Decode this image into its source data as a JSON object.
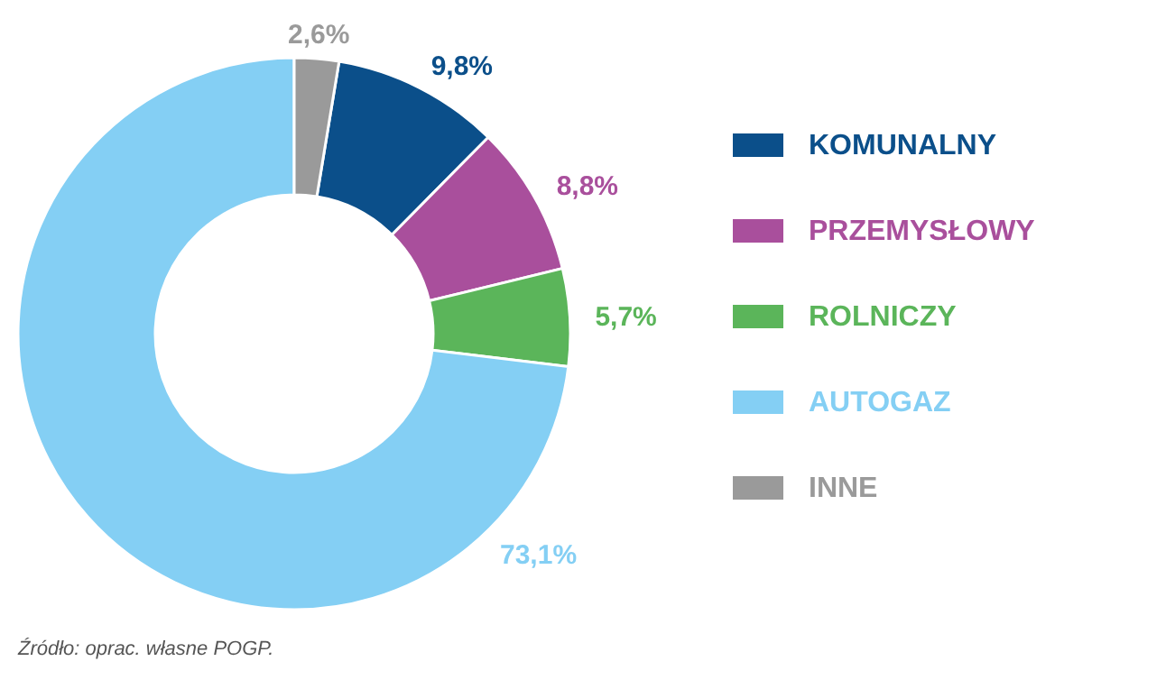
{
  "chart_data": {
    "type": "donut",
    "categories": [
      "KOMUNALNY",
      "PRZEMYSŁOWY",
      "ROLNICZY",
      "AUTOGAZ",
      "INNE"
    ],
    "values": [
      9.8,
      8.8,
      5.7,
      73.1,
      2.6
    ],
    "value_labels": [
      "9,8%",
      "8,8%",
      "5,7%",
      "73,1%",
      "2,6%"
    ],
    "colors": [
      "#0b4f8a",
      "#a94f9c",
      "#5bb55a",
      "#84cff4",
      "#9a9a9a"
    ],
    "legend": "right",
    "annotations": [
      "Źródło: oprac. własne POGP."
    ]
  }
}
